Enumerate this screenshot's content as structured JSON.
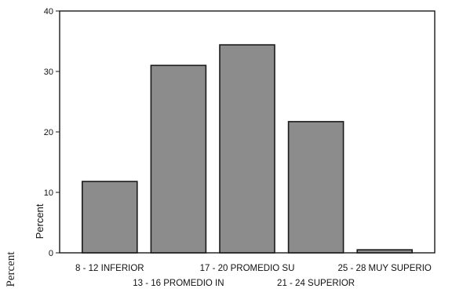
{
  "chart_data": {
    "type": "bar",
    "categories": [
      "8 - 12  INFERIOR",
      "13 - 16  PROMEDIO IN",
      "17 - 20  PROMEDIO SU",
      "21 - 24  SUPERIOR",
      "25 - 28  MUY SUPERIO"
    ],
    "values": [
      11.8,
      31.0,
      34.4,
      21.7,
      0.5
    ],
    "ylabel": "Percent",
    "ylim": [
      0,
      40
    ],
    "yticks": [
      0,
      10,
      20,
      30,
      40
    ],
    "grid": false,
    "bar_color": "#8c8c8c",
    "bar_edge_color": "#1a1a1a"
  },
  "outer_label": "Percent"
}
